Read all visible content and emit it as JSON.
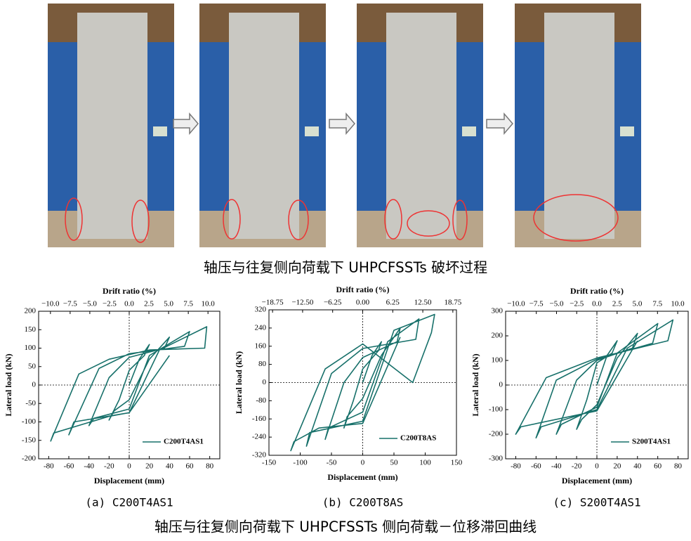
{
  "photos_caption": "轴压与往复侧向荷载下 UHPCFSSTs 破坏过程",
  "charts_caption": "轴压与往复侧向荷载下 UHPCFSSTs 侧向荷载－位移滞回曲线",
  "chart_data": [
    {
      "type": "line",
      "caption": "(a) C200T4AS1",
      "x_label": "Displacement (mm)",
      "y_label": "Lateral load (kN)",
      "x2_label": "Drift ratio (%)",
      "xlim": [
        -90,
        90
      ],
      "xticks": [
        -80,
        -60,
        -40,
        -20,
        0,
        20,
        40,
        60,
        80
      ],
      "x2lim": [
        -11.5,
        11.5
      ],
      "x2ticks": [
        {
          "value": -10,
          "label": "−10.0"
        },
        {
          "value": -7.5,
          "label": "−7.5"
        },
        {
          "value": -5,
          "label": "−5.0"
        },
        {
          "value": -2.5,
          "label": "−2.5"
        },
        {
          "value": 0,
          "label": "0.0"
        },
        2.5,
        {
          "value": 5,
          "label": "5.0"
        },
        7.5,
        {
          "value": 10,
          "label": "10.0"
        }
      ],
      "ylim": [
        -200,
        200
      ],
      "yticks": [
        -200,
        -150,
        -100,
        -50,
        0,
        50,
        100,
        150,
        200
      ],
      "zero_lines": true,
      "legend": "lower right",
      "series": [
        {
          "name": "C200T4AS1",
          "color": "#17706a",
          "x": [
            0,
            10,
            20,
            15,
            0,
            -10,
            -20,
            -15,
            0,
            20,
            40,
            35,
            0,
            -20,
            -40,
            -35,
            0,
            20,
            60,
            55,
            0,
            -30,
            -60,
            -55,
            0,
            30,
            77,
            75,
            20,
            -20,
            -50,
            -78,
            -75,
            -20,
            0,
            40
          ],
          "values": [
            0,
            70,
            110,
            80,
            40,
            -40,
            -95,
            -70,
            -40,
            70,
            130,
            100,
            75,
            20,
            -110,
            -90,
            -65,
            80,
            145,
            105,
            85,
            45,
            -135,
            -100,
            -75,
            95,
            158,
            100,
            95,
            70,
            30,
            -152,
            -130,
            -85,
            -75,
            80
          ]
        }
      ]
    },
    {
      "type": "line",
      "caption": "(b) C200T8AS",
      "x_label": "Displacement (mm)",
      "y_label": "Lateral load (kN)",
      "x2_label": "Drift ratio (%)",
      "xlim": [
        -150,
        150
      ],
      "xticks": [
        -150,
        -100,
        -50,
        0,
        50,
        100,
        150
      ],
      "x2lim": [
        -19.5,
        19.5
      ],
      "x2ticks": [
        {
          "value": -18.75,
          "label": "−18.75"
        },
        {
          "value": -12.5,
          "label": "−12.50"
        },
        {
          "value": -6.25,
          "label": "−6.25"
        },
        {
          "value": 0,
          "label": "0.00"
        },
        6.25,
        {
          "value": 12.5,
          "label": "12.50"
        },
        18.75
      ],
      "ylim": [
        -320,
        320
      ],
      "yticks": [
        -320,
        -240,
        -160,
        -80,
        0,
        80,
        160,
        240,
        320
      ],
      "zero_lines": true,
      "legend": "lower right",
      "series": [
        {
          "name": "C200T8AS",
          "color": "#17706a",
          "x": [
            0,
            15,
            30,
            25,
            0,
            -15,
            -30,
            -25,
            0,
            30,
            60,
            55,
            0,
            -30,
            -60,
            -55,
            0,
            40,
            90,
            85,
            0,
            -50,
            -90,
            -85,
            0,
            50,
            115,
            110,
            80,
            0,
            -60,
            -115,
            -110,
            -70,
            0,
            60
          ],
          "values": [
            0,
            120,
            180,
            140,
            60,
            -80,
            -200,
            -150,
            -70,
            120,
            240,
            180,
            110,
            0,
            -250,
            -200,
            -130,
            180,
            280,
            190,
            150,
            40,
            -280,
            -220,
            -170,
            230,
            300,
            220,
            0,
            170,
            60,
            -300,
            -260,
            -200,
            -180,
            200
          ]
        }
      ]
    },
    {
      "type": "line",
      "caption": "(c) S200T4AS1",
      "x_label": "Displacement (mm)",
      "y_label": "Lateral load (kN)",
      "x2_label": "Drift ratio (%)",
      "xlim": [
        -90,
        90
      ],
      "xticks": [
        -80,
        -60,
        -40,
        -20,
        0,
        20,
        40,
        60,
        80
      ],
      "x2lim": [
        -11.3,
        11.3
      ],
      "x2ticks": [
        {
          "value": -10,
          "label": "−10.0"
        },
        {
          "value": -7.5,
          "label": "−7.5"
        },
        {
          "value": -5,
          "label": "−5.0"
        },
        {
          "value": -2.5,
          "label": "−2.5"
        },
        {
          "value": 0,
          "label": "0.0"
        },
        2.5,
        {
          "value": 5,
          "label": "5.0"
        },
        7.5,
        {
          "value": 10,
          "label": "10.0"
        }
      ],
      "ylim": [
        -300,
        300
      ],
      "yticks": [
        -300,
        -200,
        -100,
        0,
        100,
        200,
        300
      ],
      "zero_lines": true,
      "legend": "lower right",
      "series": [
        {
          "name": "S200T4AS1",
          "color": "#17706a",
          "x": [
            0,
            10,
            20,
            15,
            0,
            -10,
            -20,
            -15,
            0,
            20,
            40,
            35,
            0,
            -20,
            -40,
            -35,
            0,
            20,
            60,
            55,
            0,
            -40,
            -60,
            -55,
            0,
            30,
            75,
            70,
            0,
            -50,
            -80,
            -75,
            0,
            40
          ],
          "values": [
            0,
            120,
            180,
            130,
            90,
            -60,
            -180,
            -140,
            -80,
            110,
            210,
            150,
            100,
            20,
            -200,
            -160,
            -90,
            130,
            250,
            170,
            105,
            20,
            -215,
            -170,
            -100,
            150,
            265,
            180,
            110,
            30,
            -200,
            -170,
            -105,
            180
          ]
        }
      ]
    }
  ]
}
